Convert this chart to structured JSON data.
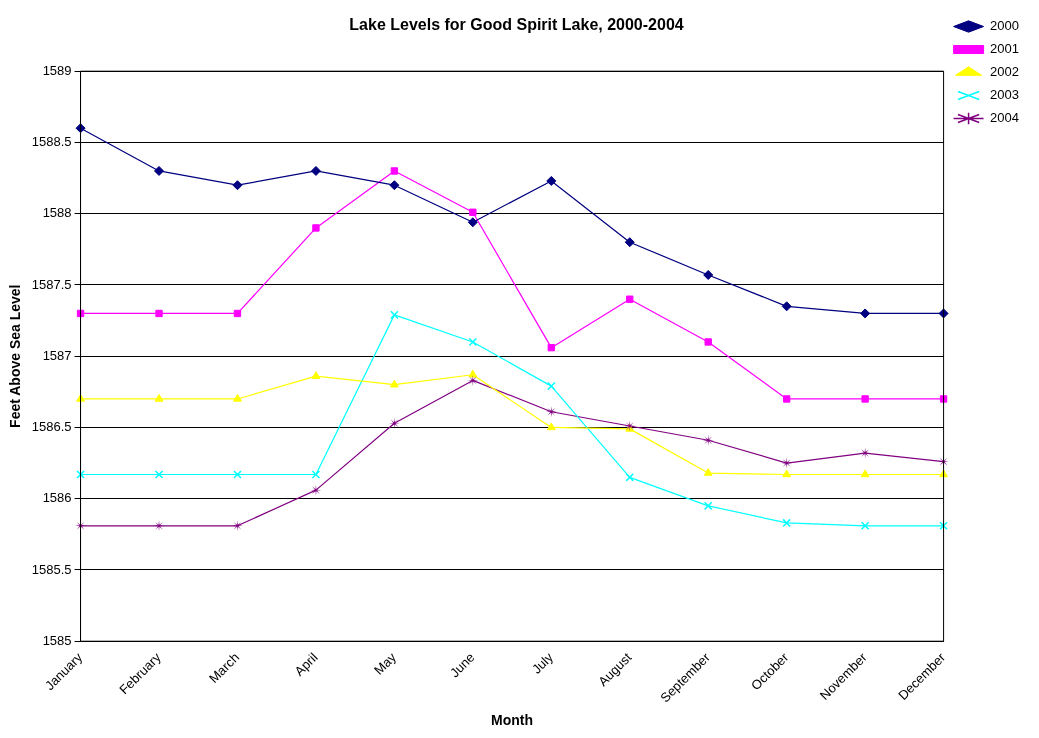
{
  "chart_data": {
    "type": "line",
    "title": "Lake Levels for Good Spirit Lake, 2000-2004",
    "xlabel": "Month",
    "ylabel": "Feet Above Sea Level",
    "categories": [
      "January",
      "February",
      "March",
      "April",
      "May",
      "June",
      "July",
      "August",
      "September",
      "October",
      "November",
      "December"
    ],
    "series": [
      {
        "name": "2000",
        "color": "#000080",
        "marker": "diamond",
        "values": [
          1588.6,
          1588.3,
          1588.2,
          1588.3,
          1588.2,
          1587.94,
          1588.23,
          1587.8,
          1587.57,
          1587.35,
          1587.3,
          1587.3
        ]
      },
      {
        "name": "2001",
        "color": "#ff00ff",
        "marker": "square",
        "values": [
          1587.3,
          1587.3,
          1587.3,
          1587.9,
          1588.3,
          1588.01,
          1587.06,
          1587.4,
          1587.1,
          1586.7,
          1586.7,
          1586.7
        ]
      },
      {
        "name": "2002",
        "color": "#ffff00",
        "marker": "triangle",
        "values": [
          1586.7,
          1586.7,
          1586.7,
          1586.86,
          1586.8,
          1586.87,
          1586.5,
          1586.49,
          1586.18,
          1586.17,
          1586.17,
          1586.17
        ]
      },
      {
        "name": "2003",
        "color": "#00ffff",
        "marker": "cross",
        "values": [
          1586.17,
          1586.17,
          1586.17,
          1586.17,
          1587.29,
          1587.1,
          1586.79,
          1586.15,
          1585.95,
          1585.83,
          1585.81,
          1585.81
        ]
      },
      {
        "name": "2004",
        "color": "#800080",
        "marker": "star",
        "values": [
          1585.81,
          1585.81,
          1585.81,
          1586.06,
          1586.53,
          1586.83,
          1586.61,
          1586.51,
          1586.41,
          1586.25,
          1586.32,
          1586.26
        ]
      }
    ],
    "ylim": [
      1585,
      1589
    ],
    "yticks": [
      1585,
      1585.5,
      1586,
      1586.5,
      1587,
      1587.5,
      1588,
      1588.5,
      1589
    ],
    "grid": "y",
    "legend": "top right",
    "line_style": "solid"
  }
}
